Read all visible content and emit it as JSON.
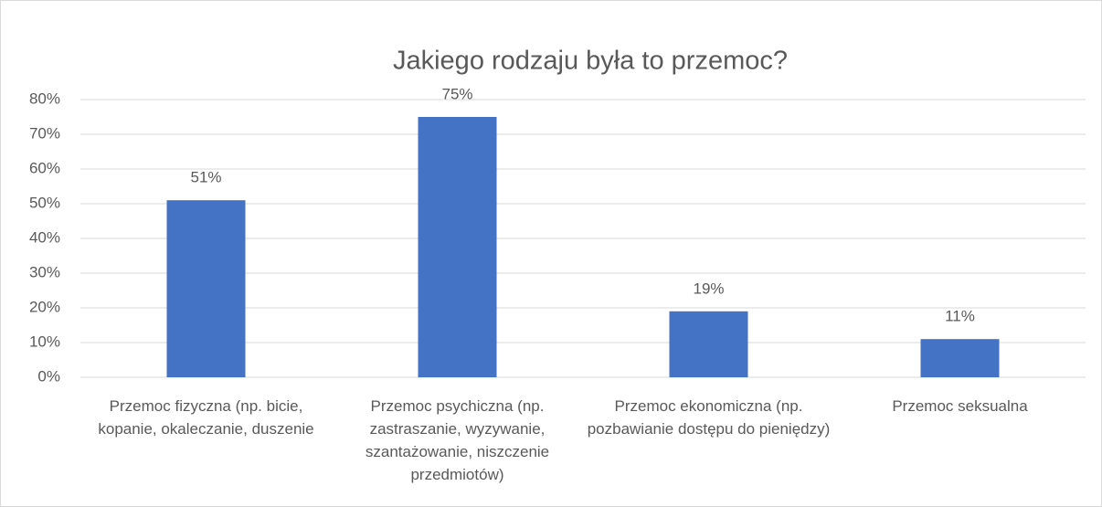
{
  "chart_data": {
    "type": "bar",
    "title": "Jakiego rodzaju była to przemoc?",
    "categories": [
      "Przemoc fizyczna (np. bicie, kopanie, okaleczanie, duszenie",
      "Przemoc psychiczna (np. zastraszanie, wyzywanie, szantażowanie, niszczenie przedmiotów)",
      "Przemoc ekonomiczna (np. pozbawianie dostępu do pieniędzy)",
      "Przemoc seksualna"
    ],
    "values": [
      51,
      75,
      19,
      11
    ],
    "value_labels": [
      "51%",
      "75%",
      "19%",
      "11%"
    ],
    "color": "#4472c4",
    "ylim": [
      0,
      80
    ],
    "yticks": [
      {
        "value": 0,
        "label": "0%"
      },
      {
        "value": 10,
        "label": "10%"
      },
      {
        "value": 20,
        "label": "20%"
      },
      {
        "value": 30,
        "label": "30%"
      },
      {
        "value": 40,
        "label": "40%"
      },
      {
        "value": 50,
        "label": "50%"
      },
      {
        "value": 60,
        "label": "60%"
      },
      {
        "value": 70,
        "label": "70%"
      },
      {
        "value": 80,
        "label": "80%"
      }
    ],
    "grid": true
  }
}
